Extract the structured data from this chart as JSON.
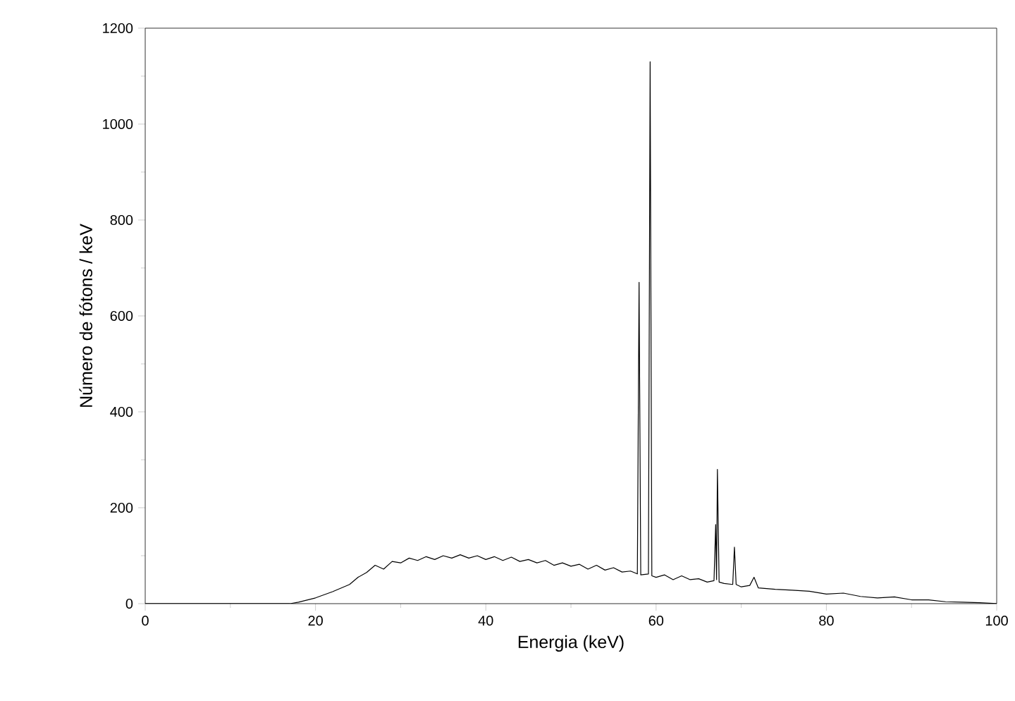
{
  "chart_data": {
    "type": "line",
    "xlabel": "Energia (keV)",
    "ylabel": "Número de fótons / keV",
    "xlim": [
      0,
      100
    ],
    "ylim": [
      0,
      1200
    ],
    "xticks": [
      0,
      20,
      40,
      60,
      80,
      100
    ],
    "yticks": [
      0,
      200,
      400,
      600,
      800,
      1000,
      1200
    ],
    "grid": false,
    "marker": "none",
    "line_style": "solid",
    "series": [
      {
        "color": "#000000",
        "x": [
          0,
          17,
          18,
          20,
          22,
          24,
          25,
          26,
          27,
          28,
          29,
          30,
          31,
          32,
          33,
          34,
          35,
          36,
          37,
          38,
          39,
          40,
          41,
          42,
          43,
          44,
          45,
          46,
          47,
          48,
          49,
          50,
          51,
          52,
          53,
          54,
          55,
          56,
          57,
          57.8,
          58,
          58.2,
          59.1,
          59.3,
          59.5,
          60,
          61,
          62,
          63,
          64,
          65,
          66,
          66.8,
          67.0,
          67.1,
          67.2,
          67.4,
          68,
          69.0,
          69.2,
          69.4,
          70,
          71,
          71.5,
          72,
          74,
          76,
          78,
          80,
          82,
          84,
          86,
          88,
          90,
          92,
          94,
          96,
          98,
          100
        ],
        "values": [
          0,
          0,
          3,
          12,
          25,
          40,
          55,
          65,
          80,
          72,
          88,
          85,
          95,
          90,
          98,
          92,
          100,
          95,
          102,
          95,
          100,
          92,
          98,
          90,
          97,
          88,
          92,
          85,
          90,
          80,
          85,
          78,
          82,
          72,
          80,
          70,
          75,
          66,
          68,
          62,
          670,
          60,
          62,
          1130,
          58,
          55,
          60,
          50,
          58,
          50,
          52,
          45,
          48,
          165,
          50,
          280,
          45,
          42,
          40,
          118,
          40,
          35,
          38,
          55,
          33,
          30,
          28,
          26,
          20,
          22,
          15,
          12,
          14,
          8,
          8,
          4,
          3,
          2,
          0
        ]
      }
    ]
  }
}
